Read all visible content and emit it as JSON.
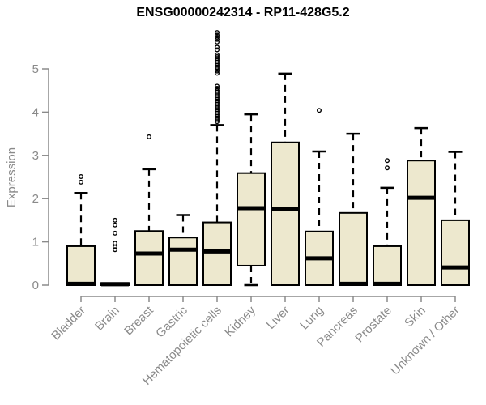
{
  "chart_data": {
    "type": "boxplot",
    "title": "ENSG00000242314 - RP11-428G5.2",
    "ylabel": "Expression",
    "xlabel": "",
    "ylim": [
      0,
      5
    ],
    "yticks": [
      0,
      1,
      2,
      3,
      4,
      5
    ],
    "grid": false,
    "legend": false,
    "categories": [
      "Bladder",
      "Brain",
      "Breast",
      "Gastric",
      "Hematopoietic cells",
      "Kidney",
      "Liver",
      "Lung",
      "Pancreas",
      "Prostate",
      "Skin",
      "Unknown / Other"
    ],
    "boxes": [
      {
        "label": "Bladder",
        "whisker_low": 0,
        "q1": 0,
        "median": 0.03,
        "q3": 0.9,
        "whisker_high": 2.13,
        "outliers": [
          2.38,
          2.51
        ]
      },
      {
        "label": "Brain",
        "whisker_low": 0,
        "q1": 0,
        "median": 0.02,
        "q3": 0.05,
        "whisker_high": 0.05,
        "outliers": [
          0.82,
          0.88,
          0.97,
          1.2,
          1.39,
          1.5
        ]
      },
      {
        "label": "Breast",
        "whisker_low": 0,
        "q1": 0,
        "median": 0.73,
        "q3": 1.25,
        "whisker_high": 2.68,
        "outliers": [
          3.43
        ]
      },
      {
        "label": "Gastric",
        "whisker_low": 0,
        "q1": 0,
        "median": 0.82,
        "q3": 1.1,
        "whisker_high": 1.62,
        "outliers": []
      },
      {
        "label": "Hematopoietic cells",
        "whisker_low": 0,
        "q1": 0,
        "median": 0.78,
        "q3": 1.45,
        "whisker_high": 3.7,
        "outliers": [
          3.78,
          3.82,
          3.86,
          3.9,
          3.94,
          3.98,
          4.02,
          4.06,
          4.1,
          4.14,
          4.18,
          4.22,
          4.26,
          4.3,
          4.34,
          4.38,
          4.42,
          4.46,
          4.5,
          4.55,
          4.6,
          4.9,
          4.95,
          5.0,
          5.04,
          5.08,
          5.12,
          5.16,
          5.2,
          5.24,
          5.28,
          5.32,
          5.44,
          5.5,
          5.62,
          5.68,
          5.73,
          5.78,
          5.84
        ]
      },
      {
        "label": "Kidney",
        "whisker_low": 0,
        "q1": 0.45,
        "median": 1.78,
        "q3": 2.59,
        "whisker_high": 3.95,
        "outliers": []
      },
      {
        "label": "Liver",
        "whisker_low": 0,
        "q1": 0,
        "median": 1.76,
        "q3": 3.3,
        "whisker_high": 4.89,
        "outliers": []
      },
      {
        "label": "Lung",
        "whisker_low": 0,
        "q1": 0,
        "median": 0.62,
        "q3": 1.24,
        "whisker_high": 3.09,
        "outliers": [
          4.04
        ]
      },
      {
        "label": "Pancreas",
        "whisker_low": 0,
        "q1": 0,
        "median": 0.03,
        "q3": 1.67,
        "whisker_high": 3.5,
        "outliers": []
      },
      {
        "label": "Prostate",
        "whisker_low": 0,
        "q1": 0,
        "median": 0.03,
        "q3": 0.9,
        "whisker_high": 2.25,
        "outliers": [
          2.71,
          2.88
        ]
      },
      {
        "label": "Skin",
        "whisker_low": 0,
        "q1": 0,
        "median": 2.02,
        "q3": 2.88,
        "whisker_high": 3.63,
        "outliers": []
      },
      {
        "label": "Unknown / Other",
        "whisker_low": 0,
        "q1": 0,
        "median": 0.41,
        "q3": 1.5,
        "whisker_high": 3.08,
        "outliers": []
      }
    ],
    "colors": {
      "background": "#ffffff",
      "box_fill": "#ede8ce",
      "box_stroke": "#000000",
      "median": "#000000",
      "whisker": "#000000",
      "outlier_stroke": "#000000",
      "axis": "#8a8a8a",
      "tick_label": "#8a8a8a",
      "title": "#000000"
    }
  }
}
